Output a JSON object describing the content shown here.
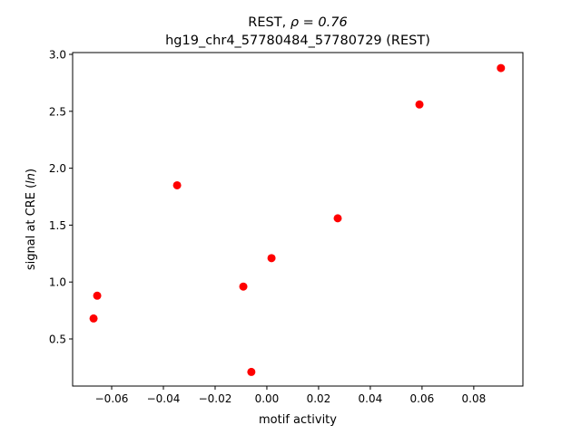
{
  "chart_data": {
    "type": "scatter",
    "title_line1_prefix": "REST, ",
    "title_line1_math": "ρ = 0.76",
    "title_line2": "hg19_chr4_57780484_57780729 (REST)",
    "xlabel": "motif activity",
    "ylabel_prefix": "signal at CRE (",
    "ylabel_italic": "ln",
    "ylabel_suffix": ")",
    "xlim": [
      -0.0751,
      0.099
    ],
    "ylim": [
      0.086,
      3.016
    ],
    "xticks": [
      -0.06,
      -0.04,
      -0.02,
      0.0,
      0.02,
      0.04,
      0.06,
      0.08
    ],
    "xtick_labels": [
      "−0.06",
      "−0.04",
      "−0.02",
      "0.00",
      "0.02",
      "0.04",
      "0.06",
      "0.08"
    ],
    "yticks": [
      0.5,
      1.0,
      1.5,
      2.0,
      2.5,
      3.0
    ],
    "ytick_labels": [
      "0.5",
      "1.0",
      "1.5",
      "2.0",
      "2.5",
      "3.0"
    ],
    "grid": false,
    "marker_color": "#ff0000",
    "points": [
      {
        "x": 0.0905,
        "y": 2.88
      },
      {
        "x": 0.059,
        "y": 2.56
      },
      {
        "x": -0.0347,
        "y": 1.85
      },
      {
        "x": 0.0274,
        "y": 1.56
      },
      {
        "x": 0.0018,
        "y": 1.21
      },
      {
        "x": -0.0091,
        "y": 0.96
      },
      {
        "x": -0.0656,
        "y": 0.88
      },
      {
        "x": -0.067,
        "y": 0.68
      },
      {
        "x": -0.006,
        "y": 0.21
      }
    ]
  }
}
